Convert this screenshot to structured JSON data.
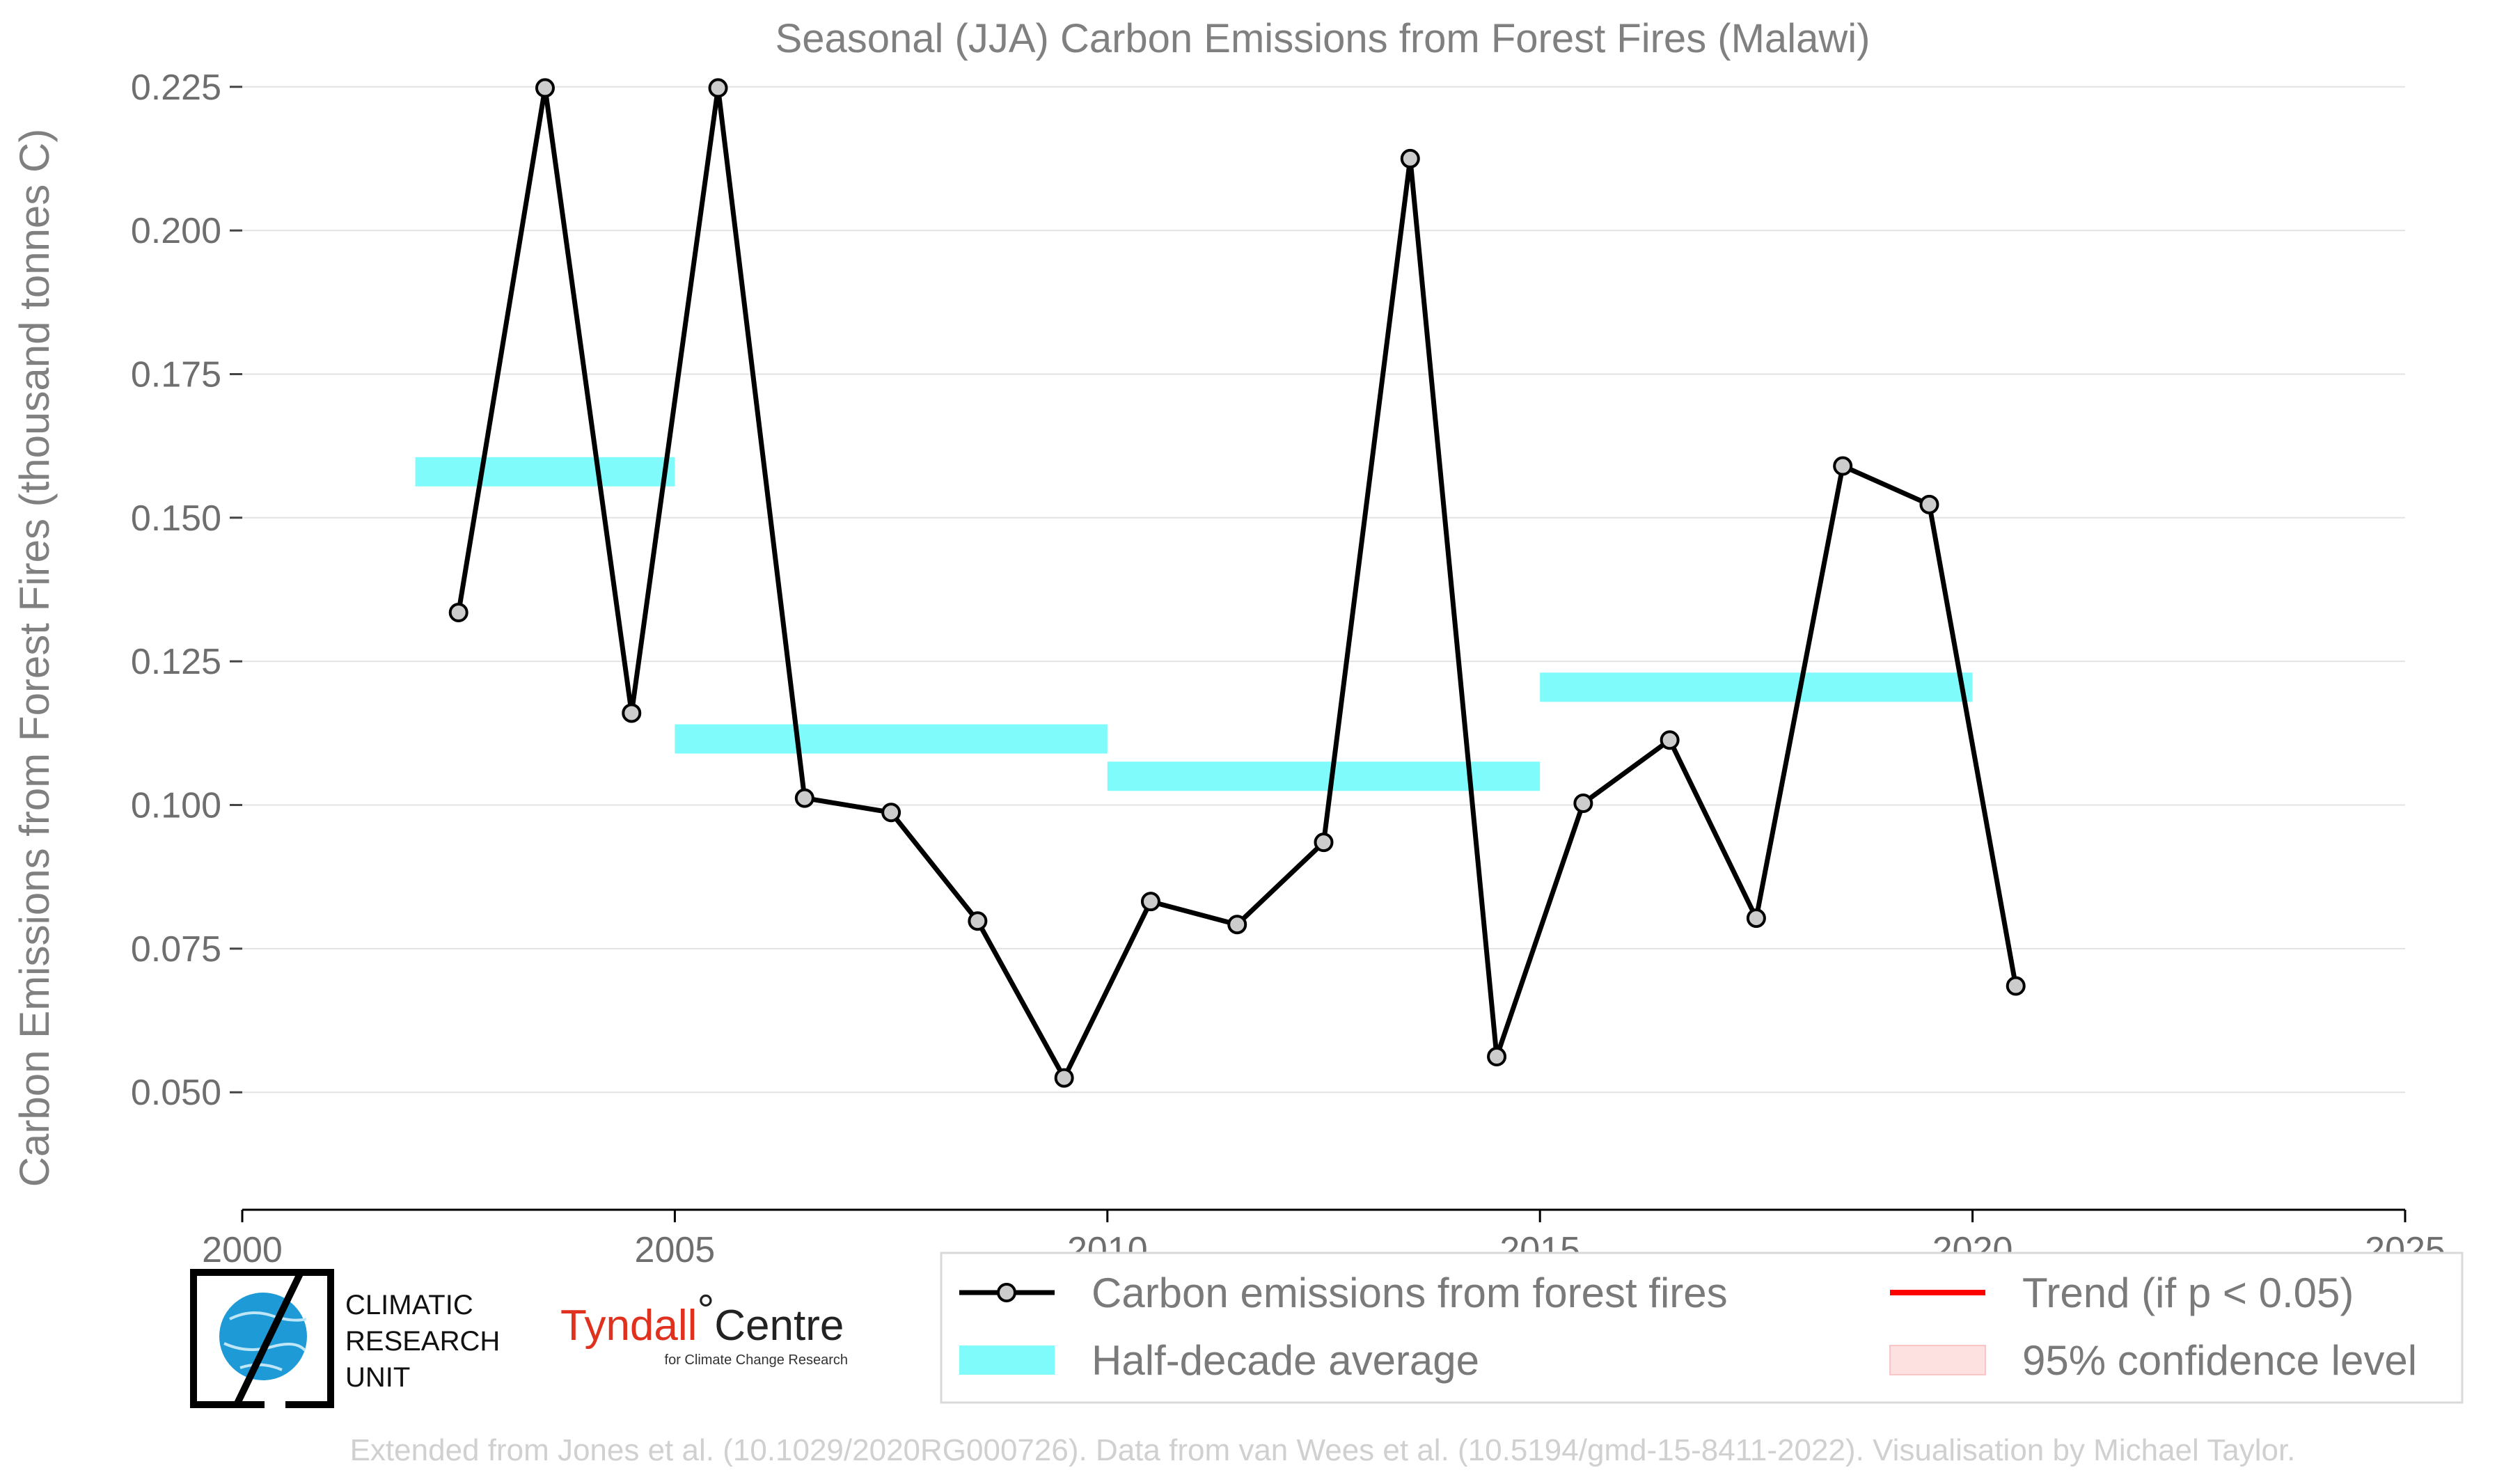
{
  "chart_data": {
    "type": "line",
    "title": "Seasonal (JJA) Carbon Emissions from Forest Fires (Malawi)",
    "xlabel": "",
    "ylabel": "Carbon Emissions from Forest Fires (thousand tonnes C)",
    "xlim": [
      2000,
      2025
    ],
    "ylim": [
      0.039,
      0.228
    ],
    "x_ticks": [
      "2000",
      "2005",
      "2010",
      "2015",
      "2020",
      "2025"
    ],
    "y_ticks": [
      "0.050",
      "0.075",
      "0.100",
      "0.125",
      "0.150",
      "0.175",
      "0.200",
      "0.225"
    ],
    "grid": "horizontal",
    "legend_position": "bottom-right",
    "series": [
      {
        "name": "Carbon emissions from forest fires",
        "x": [
          2002.5,
          2003.5,
          2004.5,
          2005.5,
          2006.5,
          2007.5,
          2008.5,
          2009.5,
          2010.5,
          2011.5,
          2012.5,
          2013.5,
          2014.5,
          2015.5,
          2016.5,
          2017.5,
          2018.5,
          2019.5,
          2020.5
        ],
        "values": [
          0.1335,
          0.2248,
          0.116,
          0.2248,
          0.1012,
          0.0987,
          0.0798,
          0.0525,
          0.0832,
          0.0792,
          0.0935,
          0.2125,
          0.0562,
          0.1003,
          0.1113,
          0.0803,
          0.159,
          0.1523,
          0.0685
        ],
        "color": "#000000",
        "marker_fill": "#cccccc"
      },
      {
        "name": "Half-decade average",
        "segments": [
          {
            "x_start": 2002,
            "x_end": 2005,
            "value": 0.158
          },
          {
            "x_start": 2005,
            "x_end": 2010,
            "value": 0.1115
          },
          {
            "x_start": 2010,
            "x_end": 2015,
            "value": 0.105
          },
          {
            "x_start": 2015,
            "x_end": 2020,
            "value": 0.1205
          }
        ],
        "color": "#7ffbfb"
      }
    ],
    "legend": [
      {
        "label": "Carbon emissions from forest fires",
        "kind": "line-marker",
        "color": "#000000"
      },
      {
        "label": "Trend (if p < 0.05)",
        "kind": "line",
        "color": "#ff0000"
      },
      {
        "label": "Half-decade average",
        "kind": "patch",
        "color": "#7ffbfb"
      },
      {
        "label": "95% confidence level",
        "kind": "patch",
        "color": "#fde0e0"
      }
    ]
  },
  "logos": {
    "cru_lines": [
      "CLIMATIC",
      "RESEARCH",
      "UNIT"
    ],
    "tyndall_main": "Tyndall",
    "tyndall_degree": "°",
    "tyndall_centre": "Centre",
    "tyndall_sub": "for Climate Change Research"
  },
  "footer": "Extended from Jones et al. (10.1029/2020RG000726). Data from van Wees et al. (10.5194/gmd-15-8411-2022). Visualisation by Michael Taylor."
}
